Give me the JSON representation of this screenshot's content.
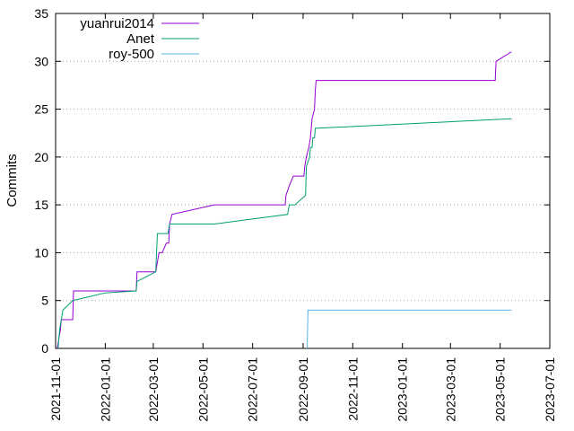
{
  "chart_data": {
    "type": "line",
    "title": "",
    "xlabel": "",
    "ylabel": "Commits",
    "ylim": [
      0,
      35
    ],
    "yticks": [
      0,
      5,
      10,
      15,
      20,
      25,
      30,
      35
    ],
    "xlim": [
      "2021-11-01",
      "2023-07-01"
    ],
    "xticks": [
      "2021-11-01",
      "2022-01-01",
      "2022-03-01",
      "2022-05-01",
      "2022-07-01",
      "2022-09-01",
      "2022-11-01",
      "2023-01-01",
      "2023-03-01",
      "2023-05-01",
      "2023-07-01"
    ],
    "grid": true,
    "legend": "top-left",
    "series": [
      {
        "name": "yuanrui2014",
        "color": "#9400d3",
        "points": [
          [
            "2021-11-03",
            0
          ],
          [
            "2021-11-05",
            1
          ],
          [
            "2021-11-07",
            2
          ],
          [
            "2021-11-08",
            3
          ],
          [
            "2021-11-22",
            3
          ],
          [
            "2021-11-23",
            6
          ],
          [
            "2022-02-08",
            6
          ],
          [
            "2022-02-09",
            8
          ],
          [
            "2022-03-04",
            8
          ],
          [
            "2022-03-06",
            9
          ],
          [
            "2022-03-08",
            10
          ],
          [
            "2022-03-12",
            10
          ],
          [
            "2022-03-17",
            11
          ],
          [
            "2022-03-20",
            11
          ],
          [
            "2022-03-21",
            13
          ],
          [
            "2022-03-24",
            14
          ],
          [
            "2022-05-15",
            15
          ],
          [
            "2022-08-10",
            15
          ],
          [
            "2022-08-11",
            16
          ],
          [
            "2022-08-15",
            17
          ],
          [
            "2022-08-20",
            18
          ],
          [
            "2022-09-02",
            18
          ],
          [
            "2022-09-03",
            19
          ],
          [
            "2022-09-05",
            20
          ],
          [
            "2022-09-08",
            21
          ],
          [
            "2022-09-10",
            22
          ],
          [
            "2022-09-12",
            24
          ],
          [
            "2022-09-15",
            25
          ],
          [
            "2022-09-16",
            27
          ],
          [
            "2022-09-17",
            28
          ],
          [
            "2023-04-25",
            28
          ],
          [
            "2023-04-26",
            30
          ],
          [
            "2023-05-15",
            31
          ]
        ]
      },
      {
        "name": "Anet",
        "color": "#009e73",
        "points": [
          [
            "2021-11-04",
            0
          ],
          [
            "2021-11-06",
            2
          ],
          [
            "2021-11-10",
            4
          ],
          [
            "2021-11-22",
            5
          ],
          [
            "2022-01-01",
            5.8
          ],
          [
            "2022-02-08",
            6
          ],
          [
            "2022-02-09",
            7
          ],
          [
            "2022-03-04",
            8
          ],
          [
            "2022-03-06",
            12
          ],
          [
            "2022-03-19",
            12
          ],
          [
            "2022-03-21",
            13
          ],
          [
            "2022-05-15",
            13
          ],
          [
            "2022-08-13",
            14
          ],
          [
            "2022-08-15",
            15
          ],
          [
            "2022-08-22",
            15
          ],
          [
            "2022-09-04",
            16
          ],
          [
            "2022-09-05",
            19
          ],
          [
            "2022-09-09",
            20
          ],
          [
            "2022-09-10",
            21
          ],
          [
            "2022-09-12",
            21
          ],
          [
            "2022-09-13",
            22
          ],
          [
            "2022-09-15",
            22
          ],
          [
            "2022-09-16",
            23
          ],
          [
            "2023-05-15",
            24
          ]
        ]
      },
      {
        "name": "roy-500",
        "color": "#56b4e9",
        "points": [
          [
            "2022-09-06",
            0
          ],
          [
            "2022-09-07",
            4
          ],
          [
            "2023-05-15",
            4
          ]
        ]
      }
    ]
  }
}
